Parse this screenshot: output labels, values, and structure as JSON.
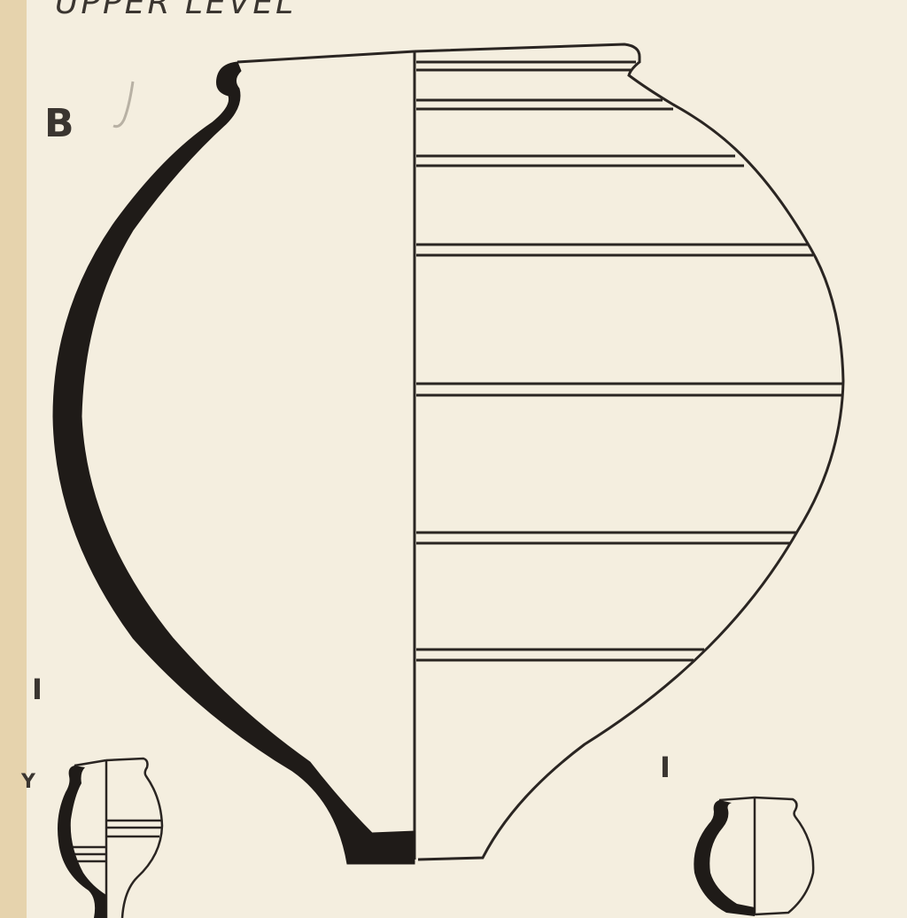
{
  "header": {
    "text": "UPPER LEVEL"
  },
  "labels": {
    "main_vessel": "B",
    "small_left_mark": "I",
    "small_left_side": "Y",
    "small_right_mark": "I"
  }
}
